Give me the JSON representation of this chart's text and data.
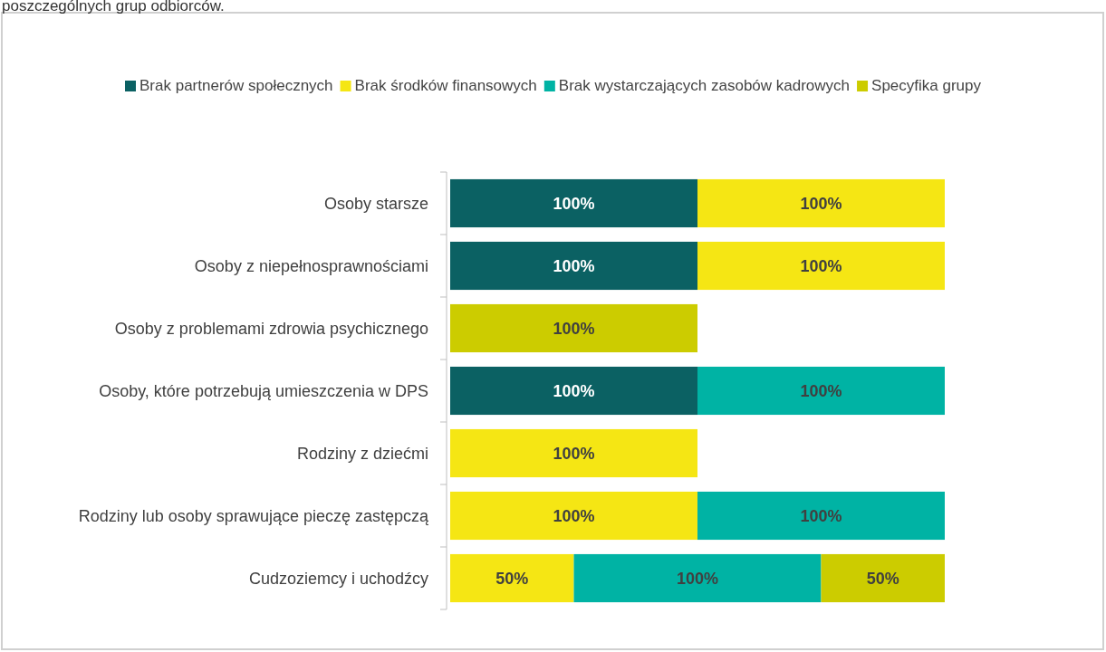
{
  "chart_data": {
    "type": "bar",
    "orientation": "horizontal",
    "stacked": true,
    "legend": "top",
    "title": "poszczególnych grup odbiorców.",
    "categories": [
      "Osoby starsze",
      "Osoby z niepełnosprawnościami",
      "Osoby z problemami zdrowia psychicznego",
      "Osoby, które potrzebują umieszczenia w DPS",
      "Rodziny z dziećmi",
      "Rodziny lub osoby sprawujące pieczę zastępczą",
      "Cudzoziemcy i uchodźcy"
    ],
    "series": [
      {
        "name": "Brak partnerów społecznych",
        "color": "#0b6163",
        "values": [
          100,
          100,
          null,
          100,
          null,
          null,
          null
        ],
        "value_labels": [
          "100%",
          "100%",
          null,
          "100%",
          null,
          null,
          null
        ]
      },
      {
        "name": "Brak środków finansowych",
        "color": "#f5e614",
        "values": [
          100,
          100,
          null,
          null,
          100,
          100,
          50
        ],
        "value_labels": [
          "100%",
          "100%",
          null,
          null,
          "100%",
          "100%",
          "50%"
        ]
      },
      {
        "name": "Brak wystarczających zasobów kadrowych",
        "color": "#00b3a4",
        "values": [
          null,
          null,
          null,
          100,
          null,
          100,
          100
        ],
        "value_labels": [
          null,
          null,
          null,
          "100%",
          null,
          "100%",
          "100%"
        ]
      },
      {
        "name": "Specyfika grupy",
        "color": "#cccc00",
        "values": [
          null,
          null,
          100,
          null,
          null,
          null,
          50
        ],
        "value_labels": [
          null,
          null,
          "100%",
          null,
          null,
          null,
          "50%"
        ]
      }
    ]
  }
}
